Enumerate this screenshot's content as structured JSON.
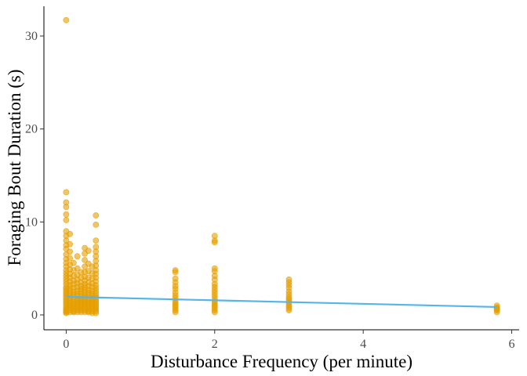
{
  "chart_data": {
    "type": "scatter",
    "title": "",
    "xlabel": "Disturbance Frequency (per minute)",
    "ylabel": "Foraging Bout Duration (s)",
    "xlim": [
      -0.3,
      6.1
    ],
    "ylim": [
      -1.6,
      33.2
    ],
    "x_ticks": [
      0,
      2,
      4,
      6
    ],
    "y_ticks": [
      0,
      10,
      20,
      30
    ],
    "grid": false,
    "legend": "none",
    "point_color": "#E69F00",
    "line_color": "#56B4E9",
    "trend_line": {
      "x": [
        0,
        5.8
      ],
      "y": [
        1.95,
        0.85
      ]
    },
    "clusters": [
      {
        "x": 0.0,
        "values": [
          31.7,
          13.2,
          12.1,
          11.6,
          10.8,
          10.2,
          9.0,
          8.5,
          8.0,
          7.5,
          7.1,
          6.5,
          6.0,
          5.6,
          5.2,
          4.8,
          4.5,
          4.2,
          3.9,
          3.6,
          3.3,
          3.0,
          2.8,
          2.6,
          2.4,
          2.2,
          2.0,
          1.8,
          1.6,
          1.4,
          1.2,
          1.0,
          0.8,
          0.6,
          0.5,
          0.4,
          0.3,
          0.2
        ]
      },
      {
        "x": 0.05,
        "values": [
          8.7,
          7.6,
          6.8,
          6.1,
          5.4,
          4.9,
          4.4,
          4.0,
          3.6,
          3.2,
          2.9,
          2.6,
          2.3,
          2.0,
          1.8,
          1.5,
          1.3,
          1.1,
          0.9,
          0.7,
          0.5,
          0.3
        ]
      },
      {
        "x": 0.1,
        "values": [
          5.6,
          4.8,
          4.2,
          3.7,
          3.3,
          2.9,
          2.5,
          2.2,
          1.9,
          1.6,
          1.4,
          1.2,
          1.0,
          0.8,
          0.6,
          0.4,
          0.3
        ]
      },
      {
        "x": 0.15,
        "values": [
          6.3,
          5.0,
          4.3,
          3.8,
          3.4,
          3.0,
          2.6,
          2.3,
          2.0,
          1.7,
          1.5,
          1.3,
          1.1,
          0.9,
          0.7,
          0.5,
          0.3
        ]
      },
      {
        "x": 0.2,
        "values": [
          4.6,
          4.0,
          3.5,
          3.1,
          2.8,
          2.5,
          2.2,
          1.9,
          1.7,
          1.5,
          1.3,
          1.1,
          0.9,
          0.7,
          0.5,
          0.3
        ]
      },
      {
        "x": 0.25,
        "values": [
          7.2,
          6.6,
          5.9,
          5.2,
          4.6,
          4.1,
          3.7,
          3.3,
          3.0,
          2.7,
          2.4,
          2.1,
          1.9,
          1.7,
          1.5,
          1.3,
          1.1,
          0.9,
          0.7,
          0.5,
          0.3
        ]
      },
      {
        "x": 0.3,
        "values": [
          6.9,
          5.5,
          4.7,
          4.0,
          3.5,
          3.1,
          2.7,
          2.4,
          2.1,
          1.8,
          1.6,
          1.4,
          1.2,
          1.0,
          0.8,
          0.6,
          0.4,
          0.3
        ]
      },
      {
        "x": 0.35,
        "values": [
          5.2,
          4.5,
          3.9,
          3.4,
          3.0,
          2.6,
          2.3,
          2.0,
          1.8,
          1.6,
          1.4,
          1.2,
          1.0,
          0.8,
          0.6,
          0.4,
          0.2
        ]
      },
      {
        "x": 0.4,
        "values": [
          10.7,
          9.7,
          8.0,
          7.3,
          6.8,
          6.3,
          5.8,
          5.3,
          4.8,
          4.4,
          4.0,
          3.6,
          3.2,
          2.9,
          2.6,
          2.3,
          2.0,
          1.8,
          1.6,
          1.4,
          1.2,
          1.0,
          0.8,
          0.6,
          0.4,
          0.2
        ]
      },
      {
        "x": 1.47,
        "values": [
          4.8,
          4.6,
          3.9,
          3.5,
          3.1,
          2.8,
          2.4,
          2.1,
          1.8,
          1.5,
          1.3,
          1.1,
          0.9,
          0.7,
          0.5,
          0.3
        ]
      },
      {
        "x": 2.0,
        "values": [
          8.5,
          8.0,
          7.8,
          5.0,
          4.7,
          4.2,
          3.8,
          3.3,
          3.0,
          2.7,
          2.4,
          2.1,
          1.8,
          1.5,
          1.3,
          1.1,
          0.9,
          0.7,
          0.5,
          0.3
        ]
      },
      {
        "x": 3.0,
        "values": [
          3.8,
          3.5,
          3.2,
          2.9,
          2.5,
          2.2,
          1.9,
          1.7,
          1.5,
          1.3,
          1.1,
          0.9,
          0.7,
          0.5
        ]
      },
      {
        "x": 5.8,
        "values": [
          1.0,
          0.8,
          0.7,
          0.6,
          0.5,
          0.3
        ]
      }
    ]
  }
}
